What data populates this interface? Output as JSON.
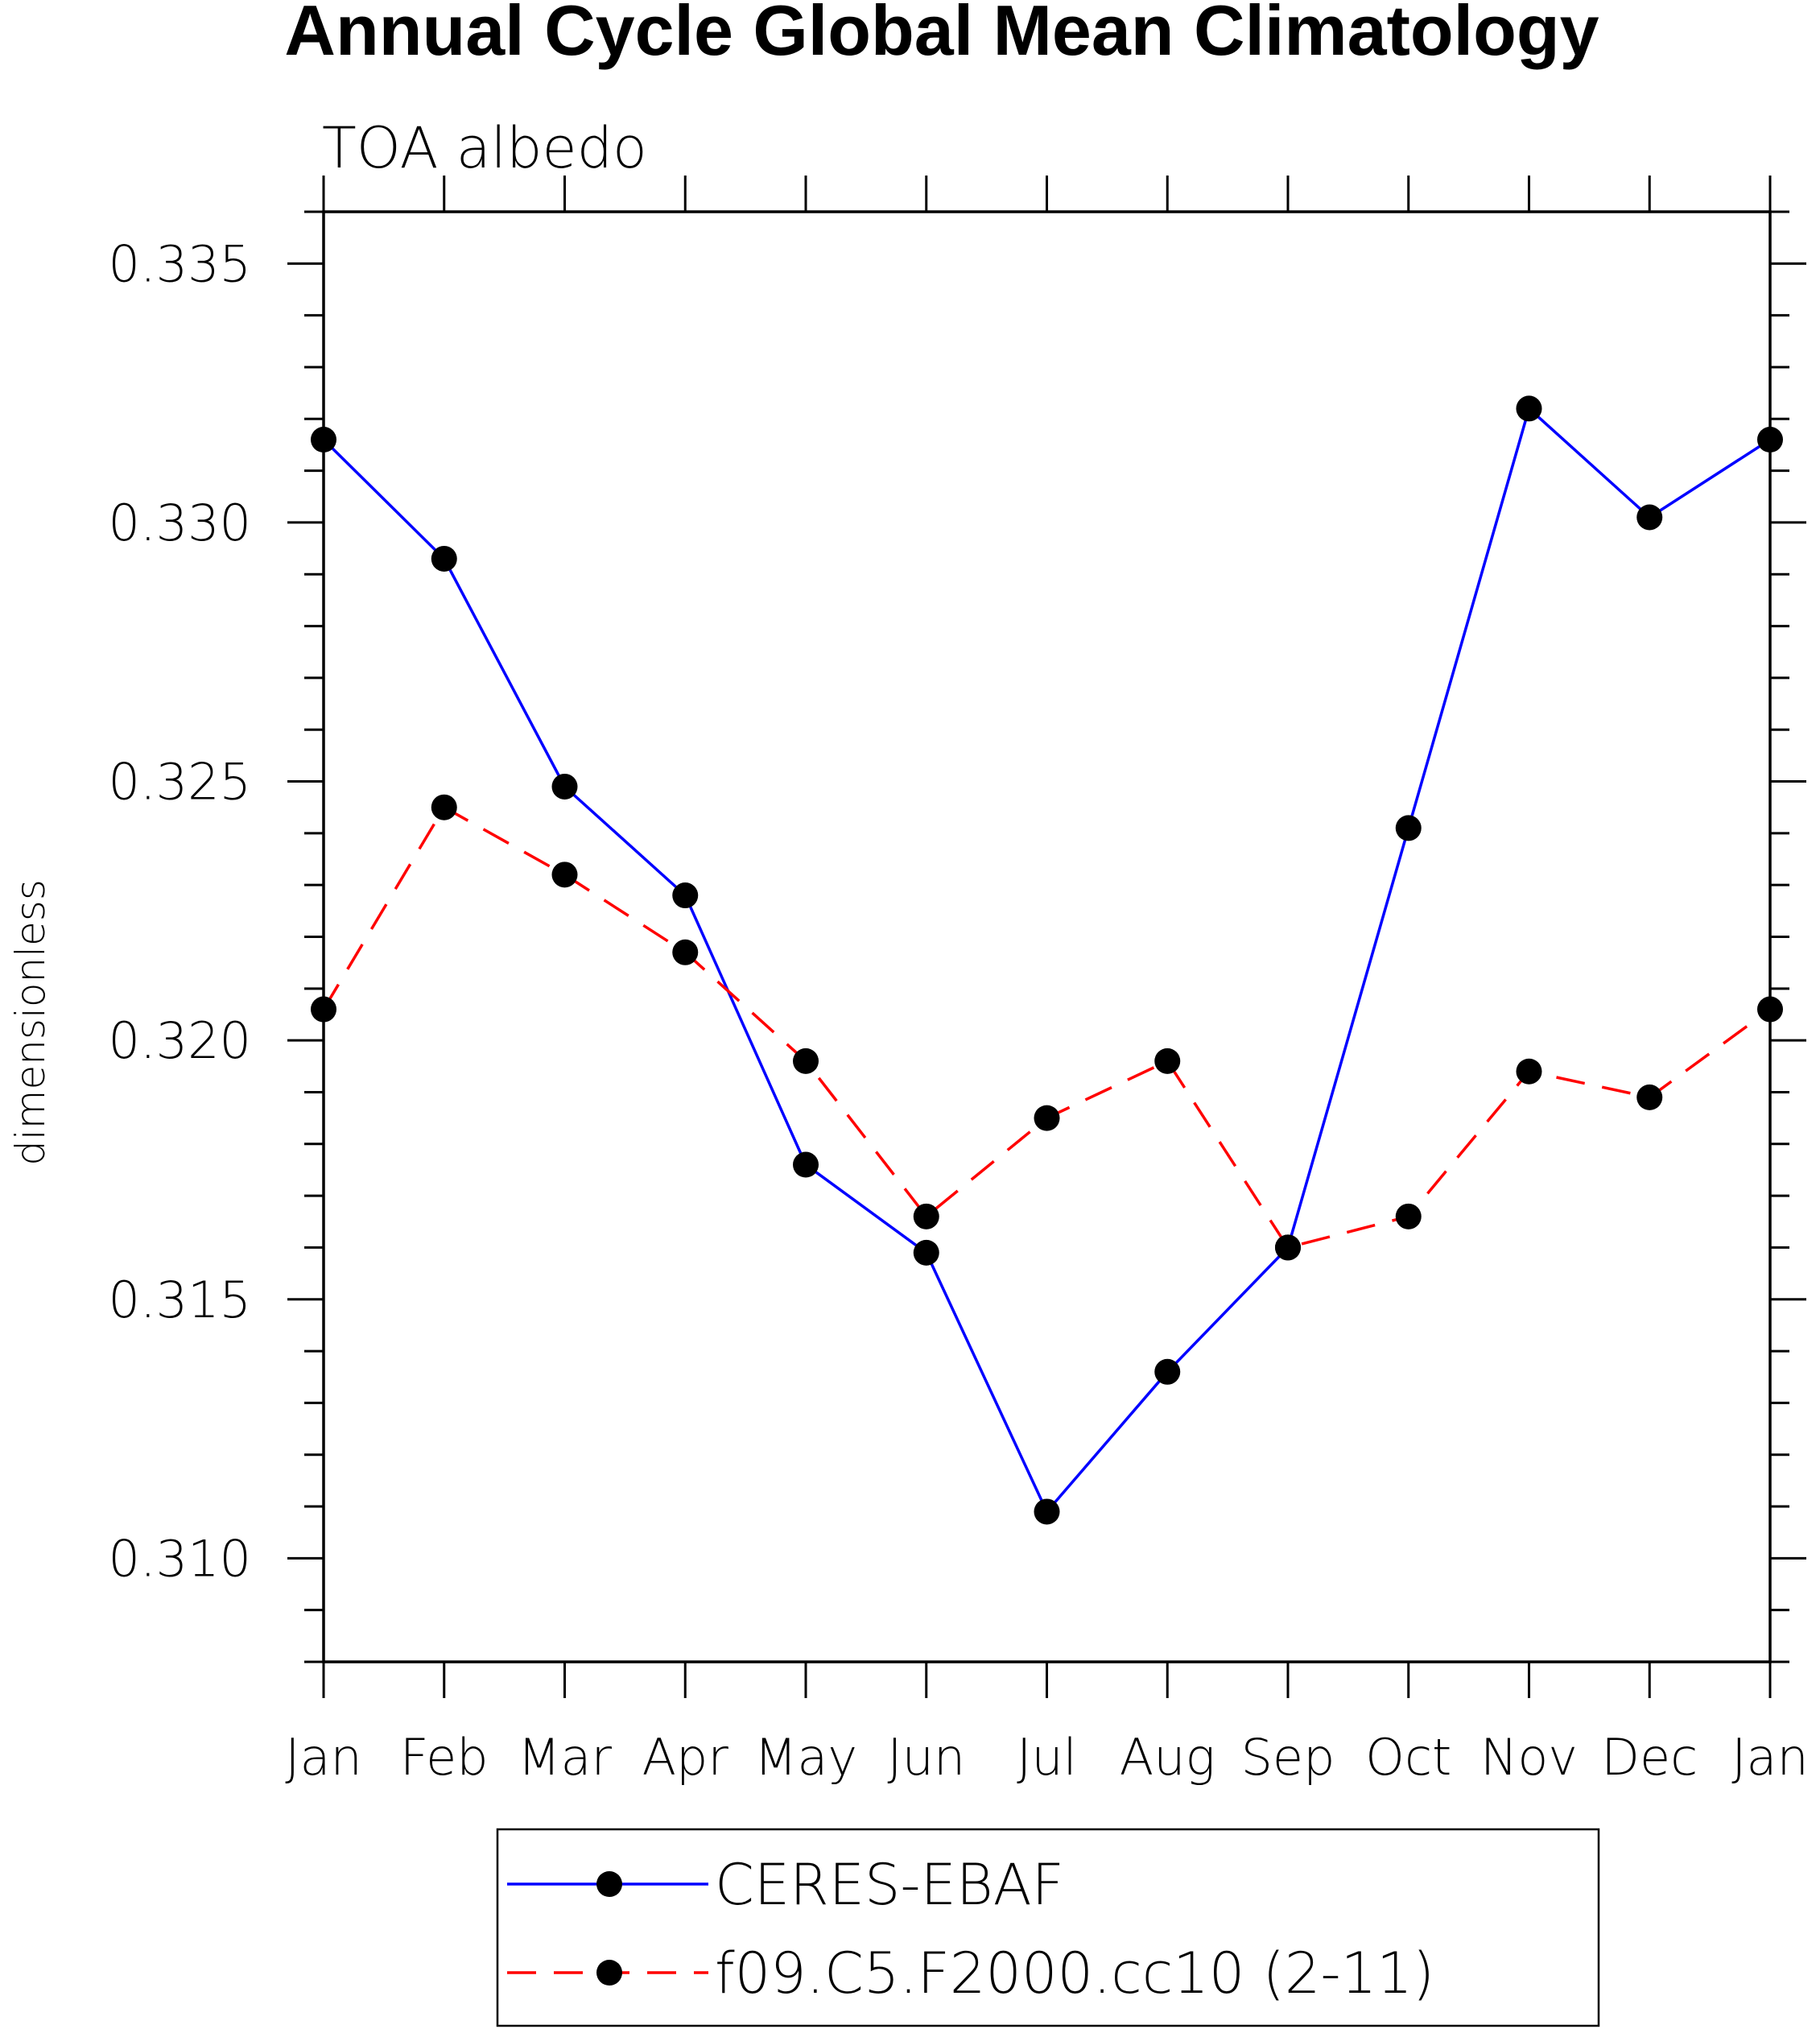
{
  "chart_data": {
    "type": "line",
    "title": "Annual Cycle Global Mean Climatology",
    "subtitle": "TOA albedo",
    "xlabel": "",
    "ylabel": "dimensionless",
    "categories": [
      "Jan",
      "Feb",
      "Mar",
      "Apr",
      "May",
      "Jun",
      "Jul",
      "Aug",
      "Sep",
      "Oct",
      "Nov",
      "Dec",
      "Jan"
    ],
    "ylim": [
      0.308,
      0.336
    ],
    "yticks": [
      "0.310",
      "0.315",
      "0.320",
      "0.325",
      "0.330",
      "0.335"
    ],
    "ytick_values": [
      0.31,
      0.315,
      0.32,
      0.325,
      0.33,
      0.335
    ],
    "ytick_minor_step": 0.001,
    "grid": false,
    "legend_position": "bottom",
    "series": [
      {
        "name": "CERES-EBAF",
        "color": "#0000ff",
        "style": "solid",
        "marker": "filled-circle",
        "values": [
          0.3316,
          0.3293,
          0.3249,
          0.3228,
          0.3176,
          0.3159,
          0.3109,
          0.3136,
          0.316,
          0.3241,
          0.3322,
          0.3301,
          0.3316
        ]
      },
      {
        "name": "f09.C5.F2000.cc10 (2-11)",
        "color": "#ff0000",
        "style": "dashed",
        "marker": "filled-circle",
        "values": [
          0.3206,
          0.3245,
          0.3232,
          0.3217,
          0.3196,
          0.3166,
          0.3185,
          0.3196,
          0.316,
          0.3166,
          0.3194,
          0.3189,
          0.3206
        ]
      }
    ]
  }
}
